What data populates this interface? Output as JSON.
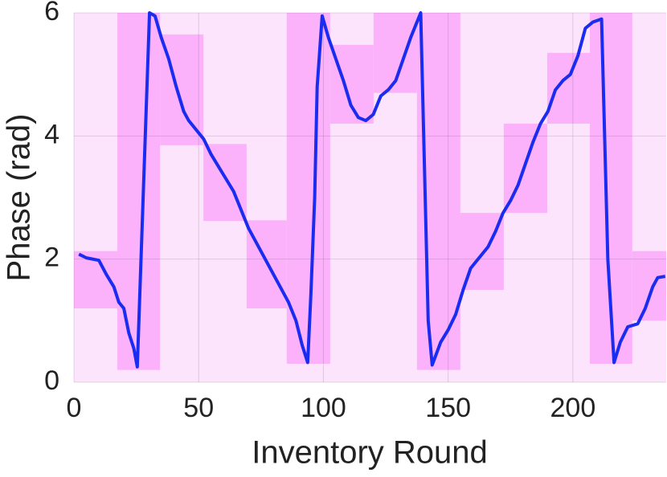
{
  "chart_data": {
    "type": "line",
    "x_label": "Inventory Round",
    "y_label": "Phase (rad)",
    "xlim": [
      0,
      237.4
    ],
    "ylim": [
      0,
      6
    ],
    "xticks": [
      0,
      50,
      100,
      150,
      200
    ],
    "yticks": [
      0,
      2,
      4,
      6
    ],
    "grid": true,
    "background_color": "#fde4fd",
    "region_color": "#fbb2fb",
    "color": "#1a2cf0",
    "regions": [
      {
        "x0": 0,
        "x1": 17.4,
        "y0": 1.2,
        "y1": 2.13
      },
      {
        "x0": 17.4,
        "x1": 34.5,
        "y0": 0.2,
        "y1": 6
      },
      {
        "x0": 34.5,
        "x1": 51.9,
        "y0": 3.85,
        "y1": 5.65
      },
      {
        "x0": 51.9,
        "x1": 69.2,
        "y0": 2.62,
        "y1": 3.87
      },
      {
        "x0": 69.2,
        "x1": 85.3,
        "y0": 1.2,
        "y1": 2.63
      },
      {
        "x0": 85.3,
        "x1": 102.7,
        "y0": 0.3,
        "y1": 6
      },
      {
        "x0": 102.7,
        "x1": 120.1,
        "y0": 4.2,
        "y1": 5.48
      },
      {
        "x0": 120.1,
        "x1": 137.5,
        "y0": 4.7,
        "y1": 6
      },
      {
        "x0": 137.5,
        "x1": 154.9,
        "y0": 0.2,
        "y1": 6
      },
      {
        "x0": 154.9,
        "x1": 172.3,
        "y0": 1.5,
        "y1": 2.75
      },
      {
        "x0": 172.3,
        "x1": 189.7,
        "y0": 2.75,
        "y1": 4.2
      },
      {
        "x0": 189.7,
        "x1": 206.8,
        "y0": 4.2,
        "y1": 5.35
      },
      {
        "x0": 206.8,
        "x1": 223.8,
        "y0": 0.3,
        "y1": 6
      },
      {
        "x0": 223.8,
        "x1": 237.4,
        "y0": 1.0,
        "y1": 2.13
      }
    ],
    "x": [
      2,
      5,
      10,
      13,
      16,
      18,
      20,
      22,
      24,
      25.4,
      30.3,
      32.5,
      35,
      38,
      41,
      44,
      46,
      49,
      52,
      55,
      58,
      61,
      64,
      67,
      70,
      74,
      78,
      82,
      86,
      89,
      91.5,
      93.7,
      95,
      96.5,
      97.5,
      99.5,
      102,
      105,
      108,
      111,
      114,
      117,
      120,
      123,
      126,
      129,
      132,
      135,
      137.5,
      139,
      140.5,
      142,
      143.6,
      147,
      150,
      153,
      156,
      159,
      162,
      166,
      169,
      172,
      175,
      178,
      181,
      184,
      187,
      190,
      193,
      196,
      199,
      202,
      205,
      208,
      211.5,
      214,
      216.5,
      219,
      222,
      226,
      229,
      232,
      234,
      237
    ],
    "values": [
      2.08,
      2.02,
      1.98,
      1.75,
      1.55,
      1.3,
      1.2,
      0.8,
      0.55,
      0.25,
      6.0,
      5.95,
      5.6,
      5.25,
      4.8,
      4.4,
      4.25,
      4.1,
      3.95,
      3.7,
      3.5,
      3.3,
      3.1,
      2.8,
      2.5,
      2.2,
      1.9,
      1.6,
      1.3,
      1.0,
      0.6,
      0.32,
      1.45,
      3.0,
      4.8,
      5.95,
      5.6,
      5.25,
      4.9,
      4.5,
      4.3,
      4.25,
      4.35,
      4.65,
      4.75,
      4.9,
      5.25,
      5.6,
      5.85,
      6.0,
      3.5,
      1.0,
      0.28,
      0.65,
      0.85,
      1.1,
      1.5,
      1.85,
      2.0,
      2.2,
      2.45,
      2.75,
      2.95,
      3.2,
      3.55,
      3.9,
      4.2,
      4.4,
      4.75,
      4.9,
      5.0,
      5.3,
      5.75,
      5.85,
      5.9,
      2.0,
      0.32,
      0.65,
      0.9,
      0.95,
      1.2,
      1.55,
      1.7,
      1.72
    ]
  }
}
